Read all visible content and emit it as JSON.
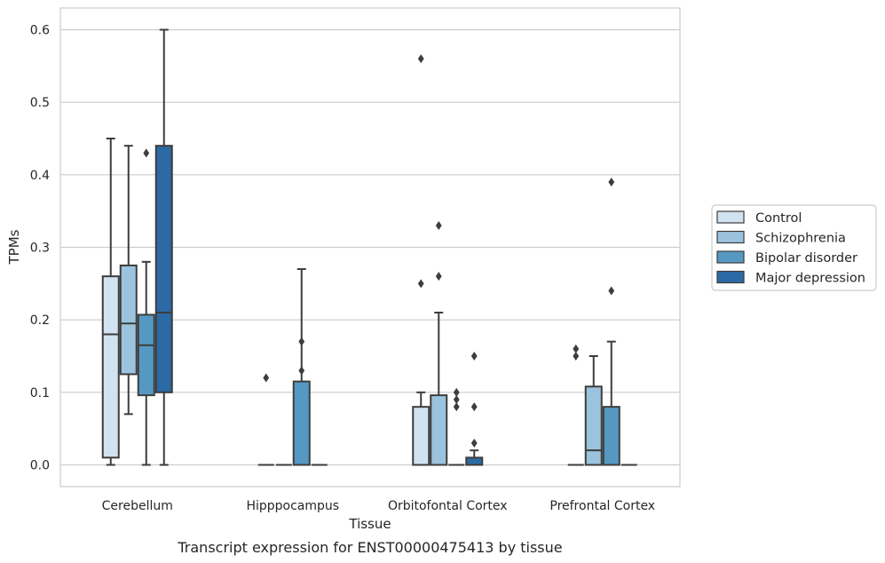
{
  "chart_data": {
    "type": "box",
    "title": "",
    "caption": "Transcript expression for ENST00000475413 by tissue",
    "xlabel": "Tissue",
    "ylabel": "TPMs",
    "ylim": [
      -0.03,
      0.63
    ],
    "yticks": [
      0.0,
      0.1,
      0.2,
      0.3,
      0.4,
      0.5,
      0.6
    ],
    "ytick_labels": [
      "0.0",
      "0.1",
      "0.2",
      "0.3",
      "0.4",
      "0.5",
      "0.6"
    ],
    "grid": "horizontal",
    "legend_position": "right",
    "categories": [
      "Cerebellum",
      "Hipppocampus",
      "Orbitofontal Cortex",
      "Prefrontal Cortex"
    ],
    "series": [
      {
        "name": "Control",
        "color": "#d1e2f1",
        "boxes": [
          {
            "q1": 0.01,
            "median": 0.18,
            "q3": 0.26,
            "whislo": 0.0,
            "whishi": 0.45,
            "fliers": []
          },
          {
            "q1": 0.0,
            "median": 0.0,
            "q3": 0.0,
            "whislo": 0.0,
            "whishi": 0.0,
            "fliers": [
              0.12
            ]
          },
          {
            "q1": 0.0,
            "median": 0.0,
            "q3": 0.08,
            "whislo": 0.0,
            "whishi": 0.1,
            "fliers": [
              0.25,
              0.56
            ]
          },
          {
            "q1": 0.0,
            "median": 0.0,
            "q3": 0.0,
            "whislo": 0.0,
            "whishi": 0.0,
            "fliers": [
              0.15,
              0.16
            ]
          }
        ]
      },
      {
        "name": "Schizophrenia",
        "color": "#9cc3dd",
        "boxes": [
          {
            "q1": 0.125,
            "median": 0.195,
            "q3": 0.275,
            "whislo": 0.07,
            "whishi": 0.44,
            "fliers": []
          },
          {
            "q1": 0.0,
            "median": 0.0,
            "q3": 0.0,
            "whislo": 0.0,
            "whishi": 0.0,
            "fliers": []
          },
          {
            "q1": 0.0,
            "median": 0.0,
            "q3": 0.096,
            "whislo": 0.0,
            "whishi": 0.21,
            "fliers": [
              0.26,
              0.33
            ]
          },
          {
            "q1": 0.0,
            "median": 0.02,
            "q3": 0.108,
            "whislo": 0.0,
            "whishi": 0.15,
            "fliers": []
          }
        ]
      },
      {
        "name": "Bipolar disorder",
        "color": "#5599c3",
        "boxes": [
          {
            "q1": 0.096,
            "median": 0.165,
            "q3": 0.207,
            "whislo": 0.0,
            "whishi": 0.28,
            "fliers": [
              0.43
            ]
          },
          {
            "q1": 0.0,
            "median": 0.0,
            "q3": 0.115,
            "whislo": 0.0,
            "whishi": 0.27,
            "fliers": [
              0.13,
              0.17
            ]
          },
          {
            "q1": 0.0,
            "median": 0.0,
            "q3": 0.0,
            "whislo": 0.0,
            "whishi": 0.0,
            "fliers": [
              0.08,
              0.09,
              0.1
            ]
          },
          {
            "q1": 0.0,
            "median": 0.0,
            "q3": 0.08,
            "whislo": 0.0,
            "whishi": 0.17,
            "fliers": [
              0.24,
              0.39
            ]
          }
        ]
      },
      {
        "name": "Major depression",
        "color": "#2b6aa5",
        "boxes": [
          {
            "q1": 0.1,
            "median": 0.21,
            "q3": 0.44,
            "whislo": 0.0,
            "whishi": 0.6,
            "fliers": []
          },
          {
            "q1": 0.0,
            "median": 0.0,
            "q3": 0.0,
            "whislo": 0.0,
            "whishi": 0.0,
            "fliers": []
          },
          {
            "q1": 0.0,
            "median": 0.0,
            "q3": 0.01,
            "whislo": 0.0,
            "whishi": 0.02,
            "fliers": [
              0.03,
              0.08,
              0.15
            ]
          },
          {
            "q1": 0.0,
            "median": 0.0,
            "q3": 0.0,
            "whislo": 0.0,
            "whishi": 0.0,
            "fliers": []
          }
        ]
      }
    ]
  }
}
